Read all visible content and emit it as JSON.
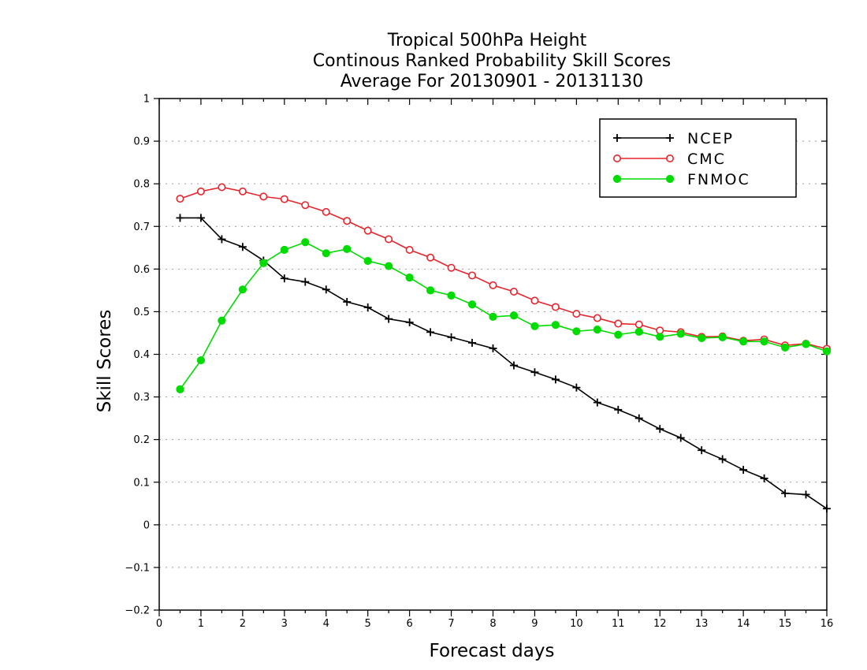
{
  "chart_data": {
    "type": "line",
    "title_lines": [
      "Tropical 500hPa Height",
      "Continous Ranked Probability Skill Scores",
      "Average For 20130901 - 20131130"
    ],
    "xlabel": "Forecast days",
    "ylabel": "Skill Scores",
    "xlim": [
      0,
      16
    ],
    "ylim": [
      -0.2,
      1
    ],
    "xticks": [
      0,
      1,
      2,
      3,
      4,
      5,
      6,
      7,
      8,
      9,
      10,
      11,
      12,
      13,
      14,
      15,
      16
    ],
    "yticks": [
      -0.2,
      -0.1,
      0,
      0.1,
      0.2,
      0.3,
      0.4,
      0.5,
      0.6,
      0.7,
      0.8,
      0.9,
      1
    ],
    "ytick_labels": [
      "−0.2",
      "−0.1",
      "0",
      "0.1",
      "0.2",
      "0.3",
      "0.4",
      "0.5",
      "0.6",
      "0.7",
      "0.8",
      "0.9",
      "1"
    ],
    "grid": "horizontal dotted",
    "legend_position": "top-right",
    "x": [
      0.5,
      1,
      1.5,
      2,
      2.5,
      3,
      3.5,
      4,
      4.5,
      5,
      5.5,
      6,
      6.5,
      7,
      7.5,
      8,
      8.5,
      9,
      9.5,
      10,
      10.5,
      11,
      11.5,
      12,
      12.5,
      13,
      13.5,
      14,
      14.5,
      15,
      15.5,
      16
    ],
    "series": [
      {
        "name": "NCEP",
        "color": "#000000",
        "marker": "plus",
        "values": [
          0.72,
          0.72,
          0.67,
          0.652,
          0.62,
          0.578,
          0.57,
          0.552,
          0.523,
          0.51,
          0.483,
          0.475,
          0.452,
          0.44,
          0.427,
          0.414,
          0.374,
          0.358,
          0.341,
          0.322,
          0.287,
          0.27,
          0.25,
          0.225,
          0.204,
          0.175,
          0.154,
          0.129,
          0.109,
          0.074,
          0.071,
          0.038
        ]
      },
      {
        "name": "CMC",
        "color": "#e8242c",
        "marker": "open-circle",
        "values": [
          0.765,
          0.782,
          0.792,
          0.782,
          0.77,
          0.764,
          0.75,
          0.734,
          0.713,
          0.69,
          0.67,
          0.645,
          0.627,
          0.603,
          0.585,
          0.562,
          0.547,
          0.526,
          0.511,
          0.495,
          0.485,
          0.472,
          0.47,
          0.456,
          0.452,
          0.441,
          0.442,
          0.432,
          0.435,
          0.421,
          0.425,
          0.413
        ]
      },
      {
        "name": "FNMOC",
        "color": "#00dc00",
        "marker": "filled-circle",
        "values": [
          0.318,
          0.386,
          0.479,
          0.552,
          0.614,
          0.645,
          0.663,
          0.637,
          0.647,
          0.619,
          0.607,
          0.58,
          0.55,
          0.538,
          0.517,
          0.488,
          0.491,
          0.466,
          0.469,
          0.454,
          0.458,
          0.446,
          0.453,
          0.441,
          0.448,
          0.438,
          0.44,
          0.43,
          0.43,
          0.416,
          0.424,
          0.407
        ]
      }
    ]
  }
}
